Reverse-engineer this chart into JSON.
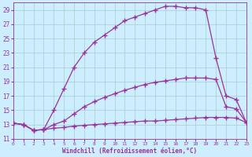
{
  "background_color": "#cceeff",
  "grid_color": "#aacccc",
  "line_color": "#993399",
  "xlabel": "Windchill (Refroidissement éolien,°C)",
  "xmin": 0,
  "xmax": 23,
  "ymin": 11,
  "ymax": 30,
  "yticks": [
    11,
    13,
    15,
    17,
    19,
    21,
    23,
    25,
    27,
    29
  ],
  "xticks": [
    0,
    1,
    2,
    3,
    4,
    5,
    6,
    7,
    8,
    9,
    10,
    11,
    12,
    13,
    14,
    15,
    16,
    17,
    18,
    19,
    20,
    21,
    22,
    23
  ],
  "line1_x": [
    0,
    1,
    2,
    3,
    4,
    5,
    6,
    7,
    8,
    9,
    10,
    11,
    12,
    13,
    14,
    15,
    16,
    17,
    18,
    19,
    20,
    21,
    22,
    23
  ],
  "line1_y": [
    13.2,
    13.0,
    12.2,
    12.3,
    12.5,
    12.6,
    12.8,
    12.9,
    13.0,
    13.1,
    13.2,
    13.3,
    13.4,
    13.5,
    13.5,
    13.6,
    13.7,
    13.8,
    13.9,
    14.0,
    14.0,
    14.0,
    13.9,
    13.3
  ],
  "line2_x": [
    0,
    1,
    2,
    3,
    4,
    5,
    6,
    7,
    8,
    9,
    10,
    11,
    12,
    13,
    14,
    15,
    16,
    17,
    18,
    19,
    20,
    21,
    22,
    23
  ],
  "line2_y": [
    13.2,
    13.0,
    12.2,
    12.3,
    13.0,
    13.5,
    14.5,
    15.5,
    16.2,
    16.8,
    17.3,
    17.8,
    18.2,
    18.6,
    18.9,
    19.1,
    19.3,
    19.5,
    19.5,
    19.5,
    19.3,
    15.5,
    15.2,
    13.3
  ],
  "line3_x": [
    0,
    1,
    2,
    3,
    4,
    5,
    6,
    7,
    8,
    9,
    10,
    11,
    12,
    13,
    14,
    15,
    16,
    17,
    18,
    19,
    20,
    21,
    22,
    23
  ],
  "line3_y": [
    13.2,
    13.0,
    12.2,
    12.3,
    15.0,
    18.0,
    21.0,
    23.0,
    24.5,
    25.5,
    26.5,
    27.5,
    28.0,
    28.5,
    29.0,
    29.5,
    29.5,
    29.3,
    29.3,
    29.0,
    22.3,
    17.0,
    16.5,
    13.3
  ],
  "marker": "+",
  "markersize": 4,
  "linewidth": 0.9
}
